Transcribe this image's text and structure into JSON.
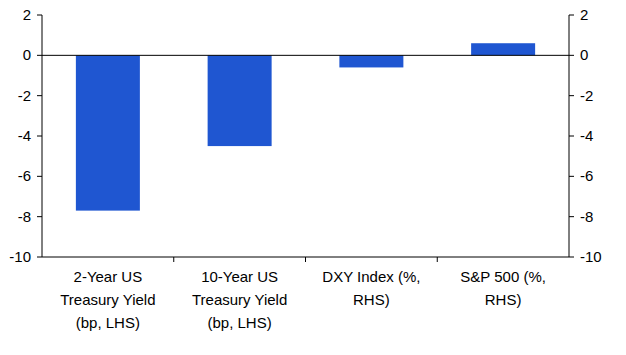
{
  "chart_data": {
    "type": "bar",
    "categories": [
      "2-Year US\nTreasury Yield\n(bp, LHS)",
      "10-Year US\nTreasury Yield\n(bp, LHS)",
      "DXY Index (%,\nRHS)",
      "S&P 500 (%,\nRHS)"
    ],
    "series": [
      {
        "color": "#1f56d1",
        "values": [
          -7.7,
          -4.5,
          null,
          null
        ]
      },
      {
        "color": "#1f56d1",
        "axis": "y2",
        "values": [
          null,
          null,
          -0.6,
          0.6
        ]
      }
    ],
    "ylim": [
      -10,
      2
    ],
    "yticks": [
      -10,
      -8,
      -6,
      -4,
      -2,
      0,
      2
    ],
    "y2lim": [
      -10,
      2
    ],
    "y2ticks": [
      -10,
      -8,
      -6,
      -4,
      -2,
      0,
      2
    ],
    "grid": false
  }
}
